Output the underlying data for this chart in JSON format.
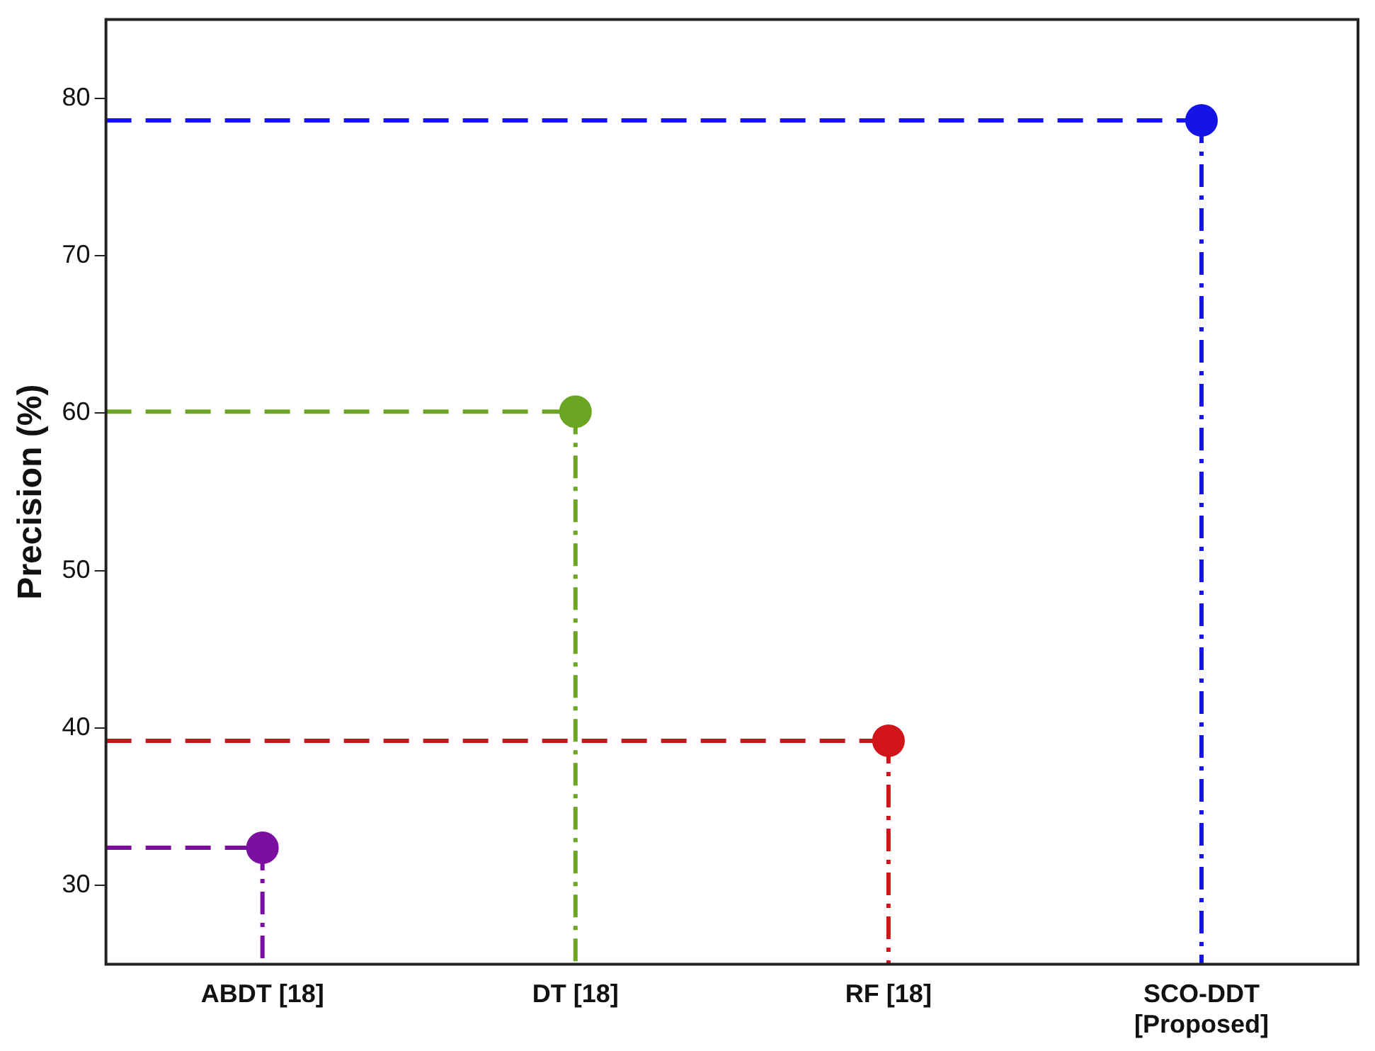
{
  "chart_data": {
    "type": "lollipop",
    "ylabel": "Precision (%)",
    "categories": [
      "ABDT [18]",
      "DT [18]",
      "RF [18]",
      "SCO-DDT\n[Proposed]"
    ],
    "values": [
      32.4,
      60.1,
      39.2,
      78.6
    ],
    "colors": [
      "#7a0fa0",
      "#6aa621",
      "#d0141a",
      "#1414e6"
    ],
    "ref_lines": [
      {
        "axis": "y",
        "value": 32.4,
        "color": "#7a0fa0",
        "line_style": "dashed"
      },
      {
        "axis": "y",
        "value": 60.1,
        "color": "#6aa621",
        "line_style": "dashed"
      },
      {
        "axis": "y",
        "value": 39.2,
        "color": "#d0141a",
        "line_style": "dashed"
      },
      {
        "axis": "y",
        "value": 78.6,
        "color": "#1414e6",
        "line_style": "dashed"
      }
    ],
    "ylim": [
      25,
      85
    ],
    "yticks": [
      30,
      40,
      50,
      60,
      70,
      80
    ],
    "grid": false,
    "legend": false,
    "marker": "circle"
  }
}
